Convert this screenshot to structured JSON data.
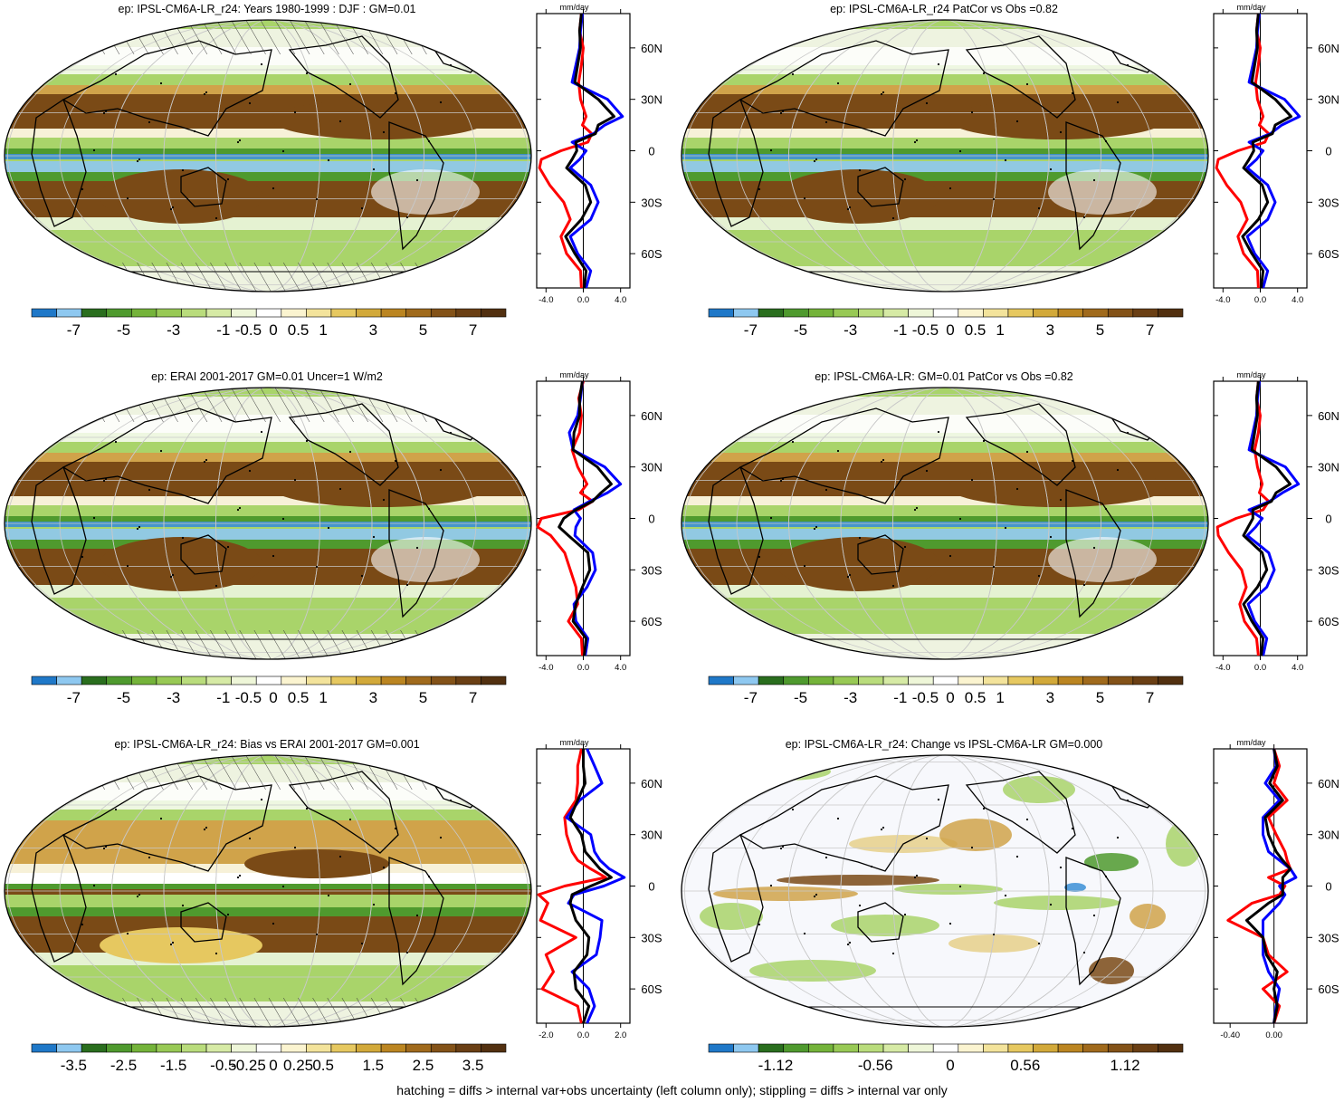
{
  "colorbar_colors": [
    "#1f78c8",
    "#8ec8f0",
    "#2a6e1e",
    "#4f9a2e",
    "#74b33a",
    "#98c955",
    "#b9dc7c",
    "#d6eaa5",
    "#eef6d8",
    "#ffffff",
    "#fbf4d0",
    "#f3e39b",
    "#e6c860",
    "#d2a93a",
    "#bb8521",
    "#a06a1c",
    "#835218",
    "#6a3f14",
    "#523010"
  ],
  "footer": "hatching = diffs > internal var+obs uncertainty (left column only); stippling = diffs > internal var only",
  "panels": [
    {
      "title": "ep: IPSL-CM6A-LR_r24: Years 1980-1999 : DJF : GM=0.01",
      "hatch": true,
      "cb_ticks": [
        "-7",
        "-5",
        "-3",
        "-1",
        "-0.5",
        "0",
        "0.5",
        "1",
        "3",
        "5",
        "7"
      ],
      "unit": "mm/day",
      "lat_ticks": [
        "60N",
        "30N",
        "0",
        "30S",
        "60S"
      ],
      "x_ticks": [
        "-4.0",
        "0.0",
        "4.0"
      ],
      "x_tick_values": [
        -4,
        0,
        4
      ],
      "chart_data": {
        "type": "line",
        "xlim": [
          -5,
          5
        ],
        "ylim": [
          -80,
          80
        ],
        "lat": [
          -80,
          -70,
          -60,
          -50,
          -40,
          -30,
          -20,
          -10,
          -5,
          0,
          5,
          10,
          15,
          20,
          30,
          40,
          50,
          60,
          70,
          80
        ],
        "series": [
          {
            "color": "#ff0000",
            "values": [
              -0.2,
              -0.3,
              -1.8,
              -2.4,
              -1.4,
              -2.1,
              -3.6,
              -4.7,
              -4.5,
              -2.4,
              0.5,
              0.9,
              -0.1,
              0.3,
              -0.3,
              -0.5,
              -0.2,
              0.0,
              -0.4,
              -0.2
            ]
          },
          {
            "color": "#0000ff",
            "values": [
              0.3,
              0.8,
              -0.6,
              -1.4,
              0.8,
              1.6,
              0.8,
              -1.4,
              -0.4,
              0.3,
              -1.2,
              1.1,
              2.3,
              4.2,
              2.6,
              -1.2,
              -0.8,
              -0.4,
              -0.3,
              -0.1
            ]
          },
          {
            "color": "#000000",
            "values": [
              0.1,
              0.3,
              -0.9,
              -1.9,
              -0.2,
              0.8,
              0.2,
              -1.8,
              -1.2,
              -0.7,
              -0.8,
              1.3,
              1.6,
              3.3,
              1.6,
              -0.9,
              -0.6,
              -0.3,
              -0.4,
              -0.2
            ]
          }
        ]
      }
    },
    {
      "title": "ep: IPSL-CM6A-LR_r24 PatCor vs Obs =0.82",
      "hatch": false,
      "cb_ticks": [
        "-7",
        "-5",
        "-3",
        "-1",
        "-0.5",
        "0",
        "0.5",
        "1",
        "3",
        "5",
        "7"
      ],
      "unit": "mm/day",
      "lat_ticks": [
        "60N",
        "30N",
        "0",
        "30S",
        "60S"
      ],
      "x_ticks": [
        "-4.0",
        "0.0",
        "4.0"
      ],
      "x_tick_values": [
        -4,
        0,
        4
      ],
      "chart_data": {
        "type": "line",
        "xlim": [
          -5,
          5
        ],
        "ylim": [
          -80,
          80
        ],
        "lat": [
          -80,
          -70,
          -60,
          -50,
          -40,
          -30,
          -20,
          -10,
          -5,
          0,
          5,
          10,
          15,
          20,
          30,
          40,
          50,
          60,
          70,
          80
        ],
        "series": [
          {
            "color": "#ff0000",
            "values": [
              -0.2,
              -0.3,
              -1.8,
              -2.4,
              -1.4,
              -2.1,
              -3.6,
              -4.7,
              -4.5,
              -2.4,
              0.5,
              0.9,
              -0.1,
              0.3,
              -0.3,
              -0.5,
              -0.2,
              0.0,
              -0.4,
              -0.2
            ]
          },
          {
            "color": "#0000ff",
            "values": [
              0.3,
              0.8,
              -0.6,
              -1.4,
              0.8,
              1.6,
              0.8,
              -1.4,
              -0.4,
              0.3,
              -1.2,
              1.1,
              2.3,
              4.2,
              2.6,
              -1.2,
              -0.8,
              -0.4,
              -0.3,
              -0.1
            ]
          },
          {
            "color": "#000000",
            "values": [
              0.1,
              0.3,
              -0.9,
              -1.9,
              -0.2,
              0.8,
              0.2,
              -1.8,
              -1.2,
              -0.7,
              -0.8,
              1.3,
              1.6,
              3.3,
              1.6,
              -0.9,
              -0.6,
              -0.3,
              -0.4,
              -0.2
            ]
          }
        ]
      }
    },
    {
      "title": "ep: ERAI 2001-2017 GM=0.01 Uncer=1 W/m2",
      "hatch": true,
      "cb_ticks": [
        "-7",
        "-5",
        "-3",
        "-1",
        "-0.5",
        "0",
        "0.5",
        "1",
        "3",
        "5",
        "7"
      ],
      "unit": "mm/day",
      "lat_ticks": [
        "60N",
        "30N",
        "0",
        "30S",
        "60S"
      ],
      "x_ticks": [
        "-4.0",
        "0.0",
        "4.0"
      ],
      "x_tick_values": [
        -4,
        0,
        4
      ],
      "chart_data": {
        "type": "line",
        "xlim": [
          -5,
          5
        ],
        "ylim": [
          -80,
          80
        ],
        "lat": [
          -80,
          -70,
          -60,
          -50,
          -40,
          -30,
          -20,
          -10,
          -5,
          0,
          5,
          10,
          15,
          20,
          30,
          40,
          50,
          60,
          70,
          80
        ],
        "series": [
          {
            "color": "#ff0000",
            "values": [
              -0.1,
              -0.2,
              -1.6,
              -0.6,
              -0.8,
              -1.4,
              -2.0,
              -3.5,
              -4.9,
              -4.5,
              -0.5,
              1.0,
              -0.3,
              0.4,
              -0.6,
              -1.2,
              -0.4,
              -0.2,
              -0.5,
              0.0
            ]
          },
          {
            "color": "#0000ff",
            "values": [
              0.2,
              0.5,
              -0.8,
              -1.0,
              0.4,
              1.3,
              1.0,
              -0.9,
              -0.8,
              -0.3,
              -1.0,
              0.7,
              2.6,
              4.0,
              2.3,
              -1.1,
              -1.5,
              -0.6,
              -0.3,
              -0.1
            ]
          },
          {
            "color": "#000000",
            "values": [
              0.1,
              0.3,
              -1.1,
              -0.8,
              -0.1,
              0.7,
              0.5,
              -1.6,
              -2.6,
              -2.1,
              -0.8,
              1.0,
              1.9,
              3.0,
              1.5,
              -1.1,
              -1.0,
              -0.4,
              -0.4,
              -0.1
            ]
          }
        ]
      }
    },
    {
      "title": "ep: IPSL-CM6A-LR: GM=0.01 PatCor vs Obs =0.82",
      "hatch": false,
      "cb_ticks": [
        "-7",
        "-5",
        "-3",
        "-1",
        "-0.5",
        "0",
        "0.5",
        "1",
        "3",
        "5",
        "7"
      ],
      "unit": "mm/day",
      "lat_ticks": [
        "60N",
        "30N",
        "0",
        "30S",
        "60S"
      ],
      "x_ticks": [
        "-4.0",
        "0.0",
        "4.0"
      ],
      "x_tick_values": [
        -4,
        0,
        4
      ],
      "chart_data": {
        "type": "line",
        "xlim": [
          -5,
          5
        ],
        "ylim": [
          -80,
          80
        ],
        "lat": [
          -80,
          -70,
          -60,
          -50,
          -40,
          -30,
          -20,
          -10,
          -5,
          0,
          5,
          10,
          15,
          20,
          30,
          40,
          50,
          60,
          70,
          80
        ],
        "series": [
          {
            "color": "#ff0000",
            "values": [
              -0.2,
              -0.4,
              -1.7,
              -2.2,
              -1.5,
              -2.0,
              -3.4,
              -4.5,
              -4.6,
              -2.6,
              0.3,
              0.9,
              -0.1,
              0.2,
              -0.3,
              -0.6,
              -0.2,
              0.0,
              -0.4,
              -0.2
            ]
          },
          {
            "color": "#0000ff",
            "values": [
              0.3,
              0.7,
              -0.6,
              -1.3,
              0.7,
              1.5,
              0.9,
              -1.4,
              -0.5,
              0.2,
              -1.2,
              1.0,
              2.4,
              4.1,
              2.7,
              -1.2,
              -0.8,
              -0.4,
              -0.3,
              -0.1
            ]
          },
          {
            "color": "#000000",
            "values": [
              0.1,
              0.3,
              -0.9,
              -1.8,
              -0.3,
              0.7,
              0.2,
              -1.8,
              -1.3,
              -0.8,
              -0.8,
              1.2,
              1.7,
              3.2,
              1.7,
              -0.9,
              -0.6,
              -0.3,
              -0.4,
              -0.2
            ]
          }
        ]
      }
    },
    {
      "title": "ep: IPSL-CM6A-LR_r24: Bias vs ERAI 2001-2017 GM=0.001",
      "hatch": true,
      "cb_ticks": [
        "-3.5",
        "-2.5",
        "-1.5",
        "-0.5",
        "-0.25",
        "0",
        "0.25",
        "0.5",
        "1.5",
        "2.5",
        "3.5"
      ],
      "unit": "mm/day",
      "lat_ticks": [
        "60N",
        "30N",
        "0",
        "30S",
        "60S"
      ],
      "x_ticks": [
        "-2.0",
        "0.0",
        "2.0"
      ],
      "x_tick_values": [
        -2,
        0,
        2
      ],
      "chart_data": {
        "type": "line",
        "xlim": [
          -2.5,
          2.5
        ],
        "ylim": [
          -80,
          80
        ],
        "lat": [
          -80,
          -70,
          -60,
          -50,
          -40,
          -30,
          -20,
          -10,
          -5,
          0,
          5,
          10,
          15,
          20,
          30,
          40,
          50,
          60,
          70,
          80
        ],
        "series": [
          {
            "color": "#ff0000",
            "values": [
              -0.1,
              -0.3,
              -2.2,
              -1.6,
              -2.0,
              -0.4,
              -2.3,
              -1.9,
              -2.4,
              -1.0,
              1.2,
              0.4,
              -0.3,
              -0.6,
              -0.9,
              -1.0,
              -0.4,
              -0.3,
              -0.3,
              -0.1
            ]
          },
          {
            "color": "#0000ff",
            "values": [
              0.2,
              0.6,
              0.3,
              -0.6,
              0.7,
              0.9,
              1.0,
              -0.8,
              -0.5,
              1.1,
              2.2,
              1.4,
              0.9,
              0.6,
              0.4,
              -0.9,
              -0.2,
              1.0,
              0.6,
              0.2
            ]
          },
          {
            "color": "#000000",
            "values": [
              0.0,
              0.3,
              -0.4,
              -0.5,
              0.2,
              0.3,
              -0.4,
              -0.7,
              -0.6,
              0.4,
              1.5,
              0.9,
              0.5,
              0.1,
              -0.1,
              -0.7,
              -0.3,
              0.1,
              0.0,
              0.0
            ]
          }
        ]
      }
    },
    {
      "title": "ep: IPSL-CM6A-LR_r24: Change vs IPSL-CM6A-LR GM=0.000",
      "hatch": false,
      "cb_ticks": [
        "-1.12",
        "-0.56",
        "0",
        "0.56",
        "1.12"
      ],
      "cb_tick_index": [
        2,
        6,
        9,
        12,
        16
      ],
      "unit": "mm/day",
      "lat_ticks": [
        "60N",
        "30N",
        "0",
        "30S",
        "60S"
      ],
      "x_ticks": [
        "-0.40",
        "0.00"
      ],
      "x_tick_values": [
        -0.4,
        0
      ],
      "chart_data": {
        "type": "line",
        "xlim": [
          -0.55,
          0.3
        ],
        "ylim": [
          -80,
          80
        ],
        "lat": [
          -80,
          -70,
          -60,
          -50,
          -40,
          -30,
          -20,
          -10,
          -5,
          0,
          5,
          10,
          15,
          20,
          30,
          40,
          50,
          60,
          70,
          80
        ],
        "series": [
          {
            "color": "#ff0000",
            "values": [
              0.0,
              0.05,
              -0.1,
              0.12,
              -0.05,
              -0.1,
              -0.42,
              -0.2,
              0.05,
              0.1,
              -0.05,
              0.15,
              0.12,
              0.1,
              0.02,
              -0.05,
              0.12,
              0.0,
              0.05,
              0.0
            ]
          },
          {
            "color": "#0000ff",
            "values": [
              0.0,
              0.02,
              0.05,
              -0.05,
              -0.1,
              -0.1,
              -0.1,
              0.05,
              0.1,
              0.05,
              0.2,
              0.15,
              0.05,
              -0.05,
              -0.1,
              -0.1,
              0.05,
              -0.08,
              0.02,
              0.0
            ]
          },
          {
            "color": "#000000",
            "values": [
              0.0,
              0.03,
              0.0,
              0.03,
              -0.07,
              -0.1,
              -0.25,
              -0.05,
              0.08,
              0.08,
              0.08,
              0.15,
              0.08,
              0.02,
              -0.05,
              -0.08,
              0.08,
              -0.04,
              0.03,
              0.0
            ]
          }
        ]
      }
    }
  ]
}
